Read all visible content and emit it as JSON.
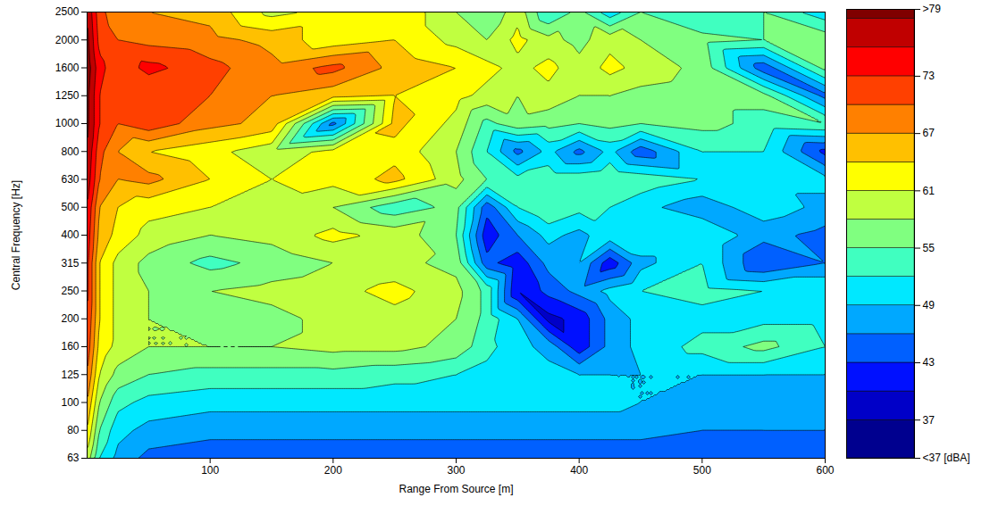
{
  "chart_data": {
    "type": "contour",
    "x_label": "Range From Source [m]",
    "y_label": "Central Frequency [Hz]",
    "x": [
      0,
      10,
      25,
      50,
      100,
      150,
      200,
      250,
      300,
      325,
      350,
      375,
      400,
      425,
      450,
      500,
      550,
      600
    ],
    "categories": [
      63,
      80,
      100,
      125,
      160,
      200,
      250,
      315,
      400,
      500,
      630,
      800,
      1000,
      1250,
      1600,
      2000,
      2500
    ],
    "xlim": [
      0,
      600
    ],
    "xticks": [
      100,
      200,
      300,
      400,
      500,
      600
    ],
    "cells": [
      [
        60,
        52,
        48,
        45,
        44,
        44,
        44,
        44,
        44,
        44,
        44,
        44,
        44,
        44,
        44,
        44,
        45,
        45
      ],
      [
        64,
        55,
        50,
        48,
        47,
        47,
        47,
        47,
        47,
        47,
        47,
        47,
        47,
        47,
        47,
        46,
        46,
        46
      ],
      [
        67,
        58,
        53,
        51,
        50,
        50,
        50,
        50,
        50,
        50,
        50,
        50,
        50,
        50,
        49,
        47,
        47,
        47
      ],
      [
        70,
        61,
        57,
        55,
        54,
        54,
        54,
        53,
        52,
        51,
        50,
        50,
        49,
        49,
        49,
        49,
        49,
        49
      ],
      [
        72,
        63,
        60,
        58,
        58,
        58,
        59,
        59,
        57,
        53,
        50,
        48,
        41,
        47,
        50,
        53,
        56,
        52
      ],
      [
        73,
        64,
        60,
        58,
        55,
        57,
        59,
        60,
        58,
        54,
        49,
        39,
        41,
        47,
        50,
        51,
        51,
        51
      ],
      [
        74,
        64,
        60,
        58,
        58,
        59,
        60,
        62,
        59,
        54,
        40,
        44,
        47,
        50,
        52,
        53,
        52,
        52
      ],
      [
        74,
        64,
        60,
        57,
        54,
        56,
        58,
        59,
        57,
        44,
        41,
        47,
        49,
        41,
        48,
        52,
        43,
        46
      ],
      [
        75,
        66,
        63,
        60,
        58,
        59,
        62,
        60,
        55,
        41,
        46,
        50,
        48,
        51,
        52,
        52,
        47,
        45
      ],
      [
        76,
        67,
        64,
        62,
        61,
        60,
        58,
        53,
        56,
        44,
        52,
        55,
        53,
        52,
        50,
        47,
        51,
        48
      ],
      [
        78,
        70,
        67,
        68,
        64,
        61,
        62,
        65,
        59,
        55,
        53,
        54,
        54,
        55,
        54,
        52,
        50,
        50
      ],
      [
        79,
        71,
        67,
        64,
        62,
        59,
        62,
        63,
        58,
        52,
        45,
        50,
        45,
        50,
        44,
        52,
        52,
        42
      ],
      [
        80,
        73,
        70,
        72,
        68,
        66,
        45,
        65,
        60,
        54,
        57,
        56,
        55,
        56,
        55,
        56,
        54,
        55
      ],
      [
        80,
        73,
        70,
        70,
        70,
        67,
        65,
        64,
        62,
        60,
        58,
        60,
        58,
        58,
        57,
        56,
        56,
        45
      ],
      [
        81,
        74,
        71,
        74,
        71,
        68,
        71,
        66,
        64,
        62,
        60,
        62,
        59,
        62,
        60,
        57,
        44,
        56
      ],
      [
        80,
        72,
        70,
        69,
        68,
        66,
        62,
        64,
        60,
        58,
        62,
        59,
        57,
        60,
        58,
        56,
        55,
        57
      ],
      [
        79,
        71,
        68,
        67,
        66,
        60,
        62,
        64,
        58,
        55,
        60,
        52,
        56,
        50,
        55,
        52,
        55,
        50
      ]
    ],
    "colorbar": {
      "range": [
        33,
        80
      ],
      "ticks": [
        {
          "value": 80,
          "label": ">79"
        },
        73,
        67,
        61,
        55,
        49,
        43,
        37,
        {
          "value": 33,
          "label": "<37 [dBA]"
        }
      ],
      "thresholds": [
        37,
        40,
        43,
        46,
        49,
        52,
        55,
        58,
        61,
        64,
        67,
        70,
        73,
        76,
        79
      ],
      "colors": [
        "#00008f",
        "#0000c8",
        "#0010ff",
        "#0060ff",
        "#00a8ff",
        "#00e8ff",
        "#40ffc0",
        "#80ff80",
        "#c0ff40",
        "#ffff00",
        "#ffc000",
        "#ff8000",
        "#ff4000",
        "#ff0000",
        "#c00000",
        "#800000"
      ]
    }
  }
}
